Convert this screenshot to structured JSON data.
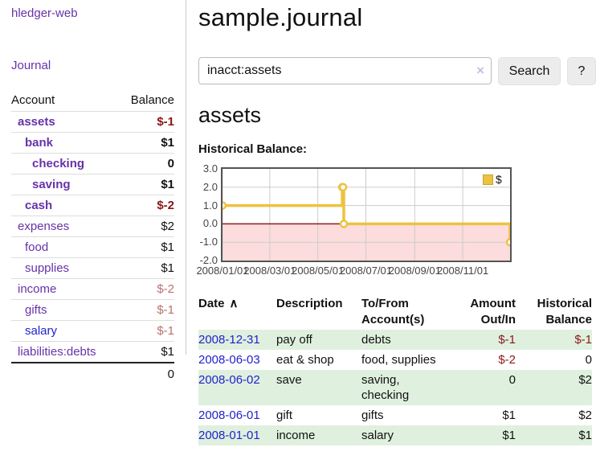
{
  "sidebar": {
    "brand": "hledger-web",
    "nav": {
      "journal": "Journal"
    },
    "table": {
      "account_header": "Account",
      "balance_header": "Balance"
    },
    "accounts": [
      {
        "name": "assets",
        "depth": 1,
        "balance": "$-1",
        "bold": true,
        "neg": "strong"
      },
      {
        "name": "bank",
        "depth": 2,
        "balance": "$1",
        "bold": true
      },
      {
        "name": "checking",
        "depth": 3,
        "balance": "0",
        "bold": true
      },
      {
        "name": "saving",
        "depth": 3,
        "balance": "$1",
        "bold": true
      },
      {
        "name": "cash",
        "depth": 2,
        "balance": "$-2",
        "bold": true,
        "neg": "strong"
      },
      {
        "name": "expenses",
        "depth": 1,
        "balance": "$2"
      },
      {
        "name": "food",
        "depth": 2,
        "balance": "$1"
      },
      {
        "name": "supplies",
        "depth": 2,
        "balance": "$1"
      },
      {
        "name": "income",
        "depth": 1,
        "balance": "$-2",
        "neg": "soft"
      },
      {
        "name": "gifts",
        "depth": 2,
        "balance": "$-1",
        "neg": "soft"
      },
      {
        "name": "salary",
        "depth": 2,
        "balance": "$-1",
        "neg": "soft",
        "blue": true
      },
      {
        "name": "liabilities:debts",
        "depth": 1,
        "balance": "$1"
      }
    ],
    "total": "0"
  },
  "main": {
    "title": "sample.journal",
    "search": {
      "value": "inacct:assets",
      "clear_icon": "×",
      "search_button": "Search",
      "help_button": "?"
    },
    "account_title": "assets",
    "chart_heading": "Historical Balance:"
  },
  "chart_data": {
    "type": "line",
    "step": true,
    "title": "Historical Balance",
    "series": [
      {
        "name": "$",
        "color": "#EDC240",
        "x": [
          "2008-01-01",
          "2008-06-01",
          "2008-06-02",
          "2008-06-03",
          "2008-12-31"
        ],
        "y": [
          1,
          2,
          2,
          0,
          -1
        ]
      }
    ],
    "xlim": [
      "2008-01-01",
      "2008-12-31"
    ],
    "ylim": [
      -2,
      3
    ],
    "yticks": [
      {
        "v": 3,
        "label": "3.0"
      },
      {
        "v": 2,
        "label": "2.0"
      },
      {
        "v": 1,
        "label": "1.0"
      },
      {
        "v": 0,
        "label": "0.0"
      },
      {
        "v": -1,
        "label": "-1.0"
      },
      {
        "v": -2,
        "label": "-2.0"
      }
    ],
    "xticks": [
      {
        "d": "2008-01-01",
        "label": "2008/01/01"
      },
      {
        "d": "2008-03-01",
        "label": "2008/03/01"
      },
      {
        "d": "2008-05-01",
        "label": "2008/05/01"
      },
      {
        "d": "2008-07-01",
        "label": "2008/07/01"
      },
      {
        "d": "2008-09-01",
        "label": "2008/09/01"
      },
      {
        "d": "2008-11-01",
        "label": "2008/11/01"
      }
    ],
    "grid": true,
    "legend": {
      "label": "$",
      "position": "top-right",
      "swatch_color": "#EDC240"
    },
    "colors": {
      "negative_region": "#fcdcdc",
      "zero_line": "#8f1a1a",
      "grid": "#cccccc",
      "border": "#545454"
    }
  },
  "register": {
    "columns": [
      {
        "label": "Date",
        "sort_indicator": "∧",
        "align": "left"
      },
      {
        "label": "Description",
        "align": "left"
      },
      {
        "label": "To/From Account(s)",
        "align": "left"
      },
      {
        "label": "Amount Out/In",
        "align": "right"
      },
      {
        "label": "Historical Balance",
        "align": "right"
      }
    ],
    "rows": [
      {
        "date": "2008-12-31",
        "description": "pay off",
        "accounts": "debts",
        "amount": "$-1",
        "balance": "$-1"
      },
      {
        "date": "2008-06-03",
        "description": "eat & shop",
        "accounts": "food, supplies",
        "amount": "$-2",
        "balance": "0"
      },
      {
        "date": "2008-06-02",
        "description": "save",
        "accounts": "saving, checking",
        "amount": "0",
        "balance": "$2"
      },
      {
        "date": "2008-06-01",
        "description": "gift",
        "accounts": "gifts",
        "amount": "$1",
        "balance": "$2"
      },
      {
        "date": "2008-01-01",
        "description": "income",
        "accounts": "salary",
        "amount": "$1",
        "balance": "$1"
      }
    ]
  }
}
